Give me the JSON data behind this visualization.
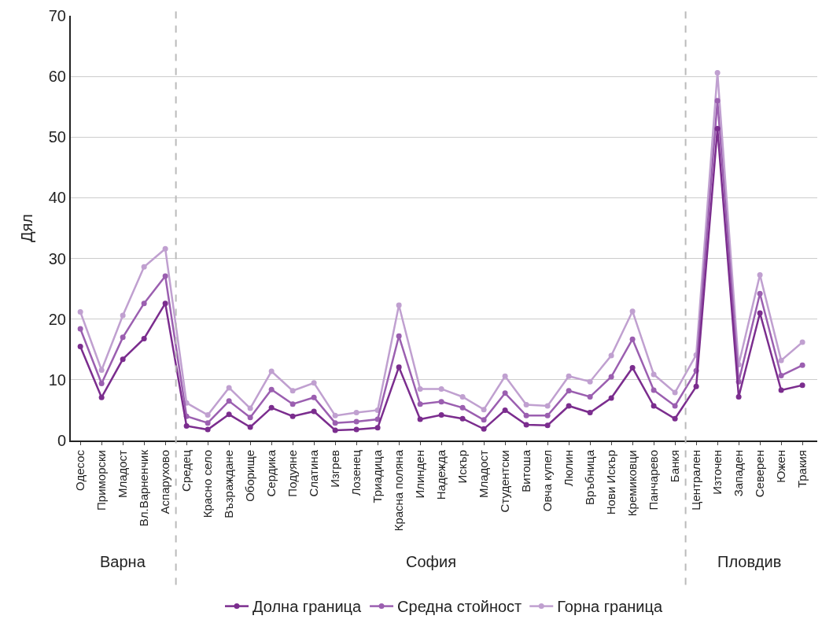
{
  "chart_data": {
    "type": "line",
    "ylabel": "Дял",
    "categories": [
      "Одесос",
      "Приморски",
      "Младост",
      "Вл.Варненчик",
      "Аспарухово",
      "Средец",
      "Красно село",
      "Възраждане",
      "Оборище",
      "Сердика",
      "Подуяне",
      "Слатина",
      "Изгрев",
      "Лозенец",
      "Триадица",
      "Красна поляна",
      "Илинден",
      "Надежда",
      "Искър",
      "Младост",
      "Студентски",
      "Витоша",
      "Овча купел",
      "Люлин",
      "Връбница",
      "Нови Искър",
      "Кремиковци",
      "Панчарево",
      "Банкя",
      "Централен",
      "Източен",
      "Западен",
      "Северен",
      "Южен",
      "Тракия"
    ],
    "series": [
      {
        "name": "Долна граница",
        "color": "#7b2d8e",
        "values": [
          15.5,
          7.1,
          13.4,
          16.8,
          22.6,
          2.4,
          1.8,
          4.3,
          2.2,
          5.4,
          4.0,
          4.8,
          1.7,
          1.8,
          2.1,
          12.1,
          3.5,
          4.2,
          3.6,
          1.9,
          5.0,
          2.6,
          2.5,
          5.7,
          4.6,
          7.0,
          12.0,
          5.7,
          3.6,
          8.9,
          51.4,
          7.2,
          21.0,
          8.3,
          9.1
        ]
      },
      {
        "name": "Средна стойност",
        "color": "#9b5fb0",
        "values": [
          18.4,
          9.4,
          17.0,
          22.6,
          27.1,
          4.0,
          2.9,
          6.5,
          3.8,
          8.4,
          6.0,
          7.1,
          2.9,
          3.1,
          3.5,
          17.2,
          6.0,
          6.4,
          5.4,
          3.4,
          7.8,
          4.1,
          4.1,
          8.2,
          7.2,
          10.5,
          16.7,
          8.3,
          5.7,
          11.5,
          56.0,
          9.7,
          24.2,
          10.7,
          12.4
        ]
      },
      {
        "name": "Горна граница",
        "color": "#c0a0d0",
        "values": [
          21.2,
          11.6,
          20.6,
          28.6,
          31.6,
          6.2,
          4.2,
          8.7,
          5.3,
          11.4,
          8.2,
          9.5,
          4.1,
          4.6,
          5.0,
          22.3,
          8.5,
          8.5,
          7.2,
          5.1,
          10.6,
          5.9,
          5.7,
          10.6,
          9.7,
          14.0,
          21.3,
          10.9,
          7.9,
          14.1,
          60.6,
          12.5,
          27.3,
          13.2,
          16.2
        ]
      }
    ],
    "annotations": [
      "Варна",
      "София",
      "Пловдив"
    ],
    "ylim": [
      0,
      70
    ],
    "yticks": [
      0,
      10,
      20,
      30,
      40,
      50,
      60,
      70
    ],
    "grid": "y",
    "legend": "bottom",
    "marker": "circle",
    "line_style": "solid"
  }
}
